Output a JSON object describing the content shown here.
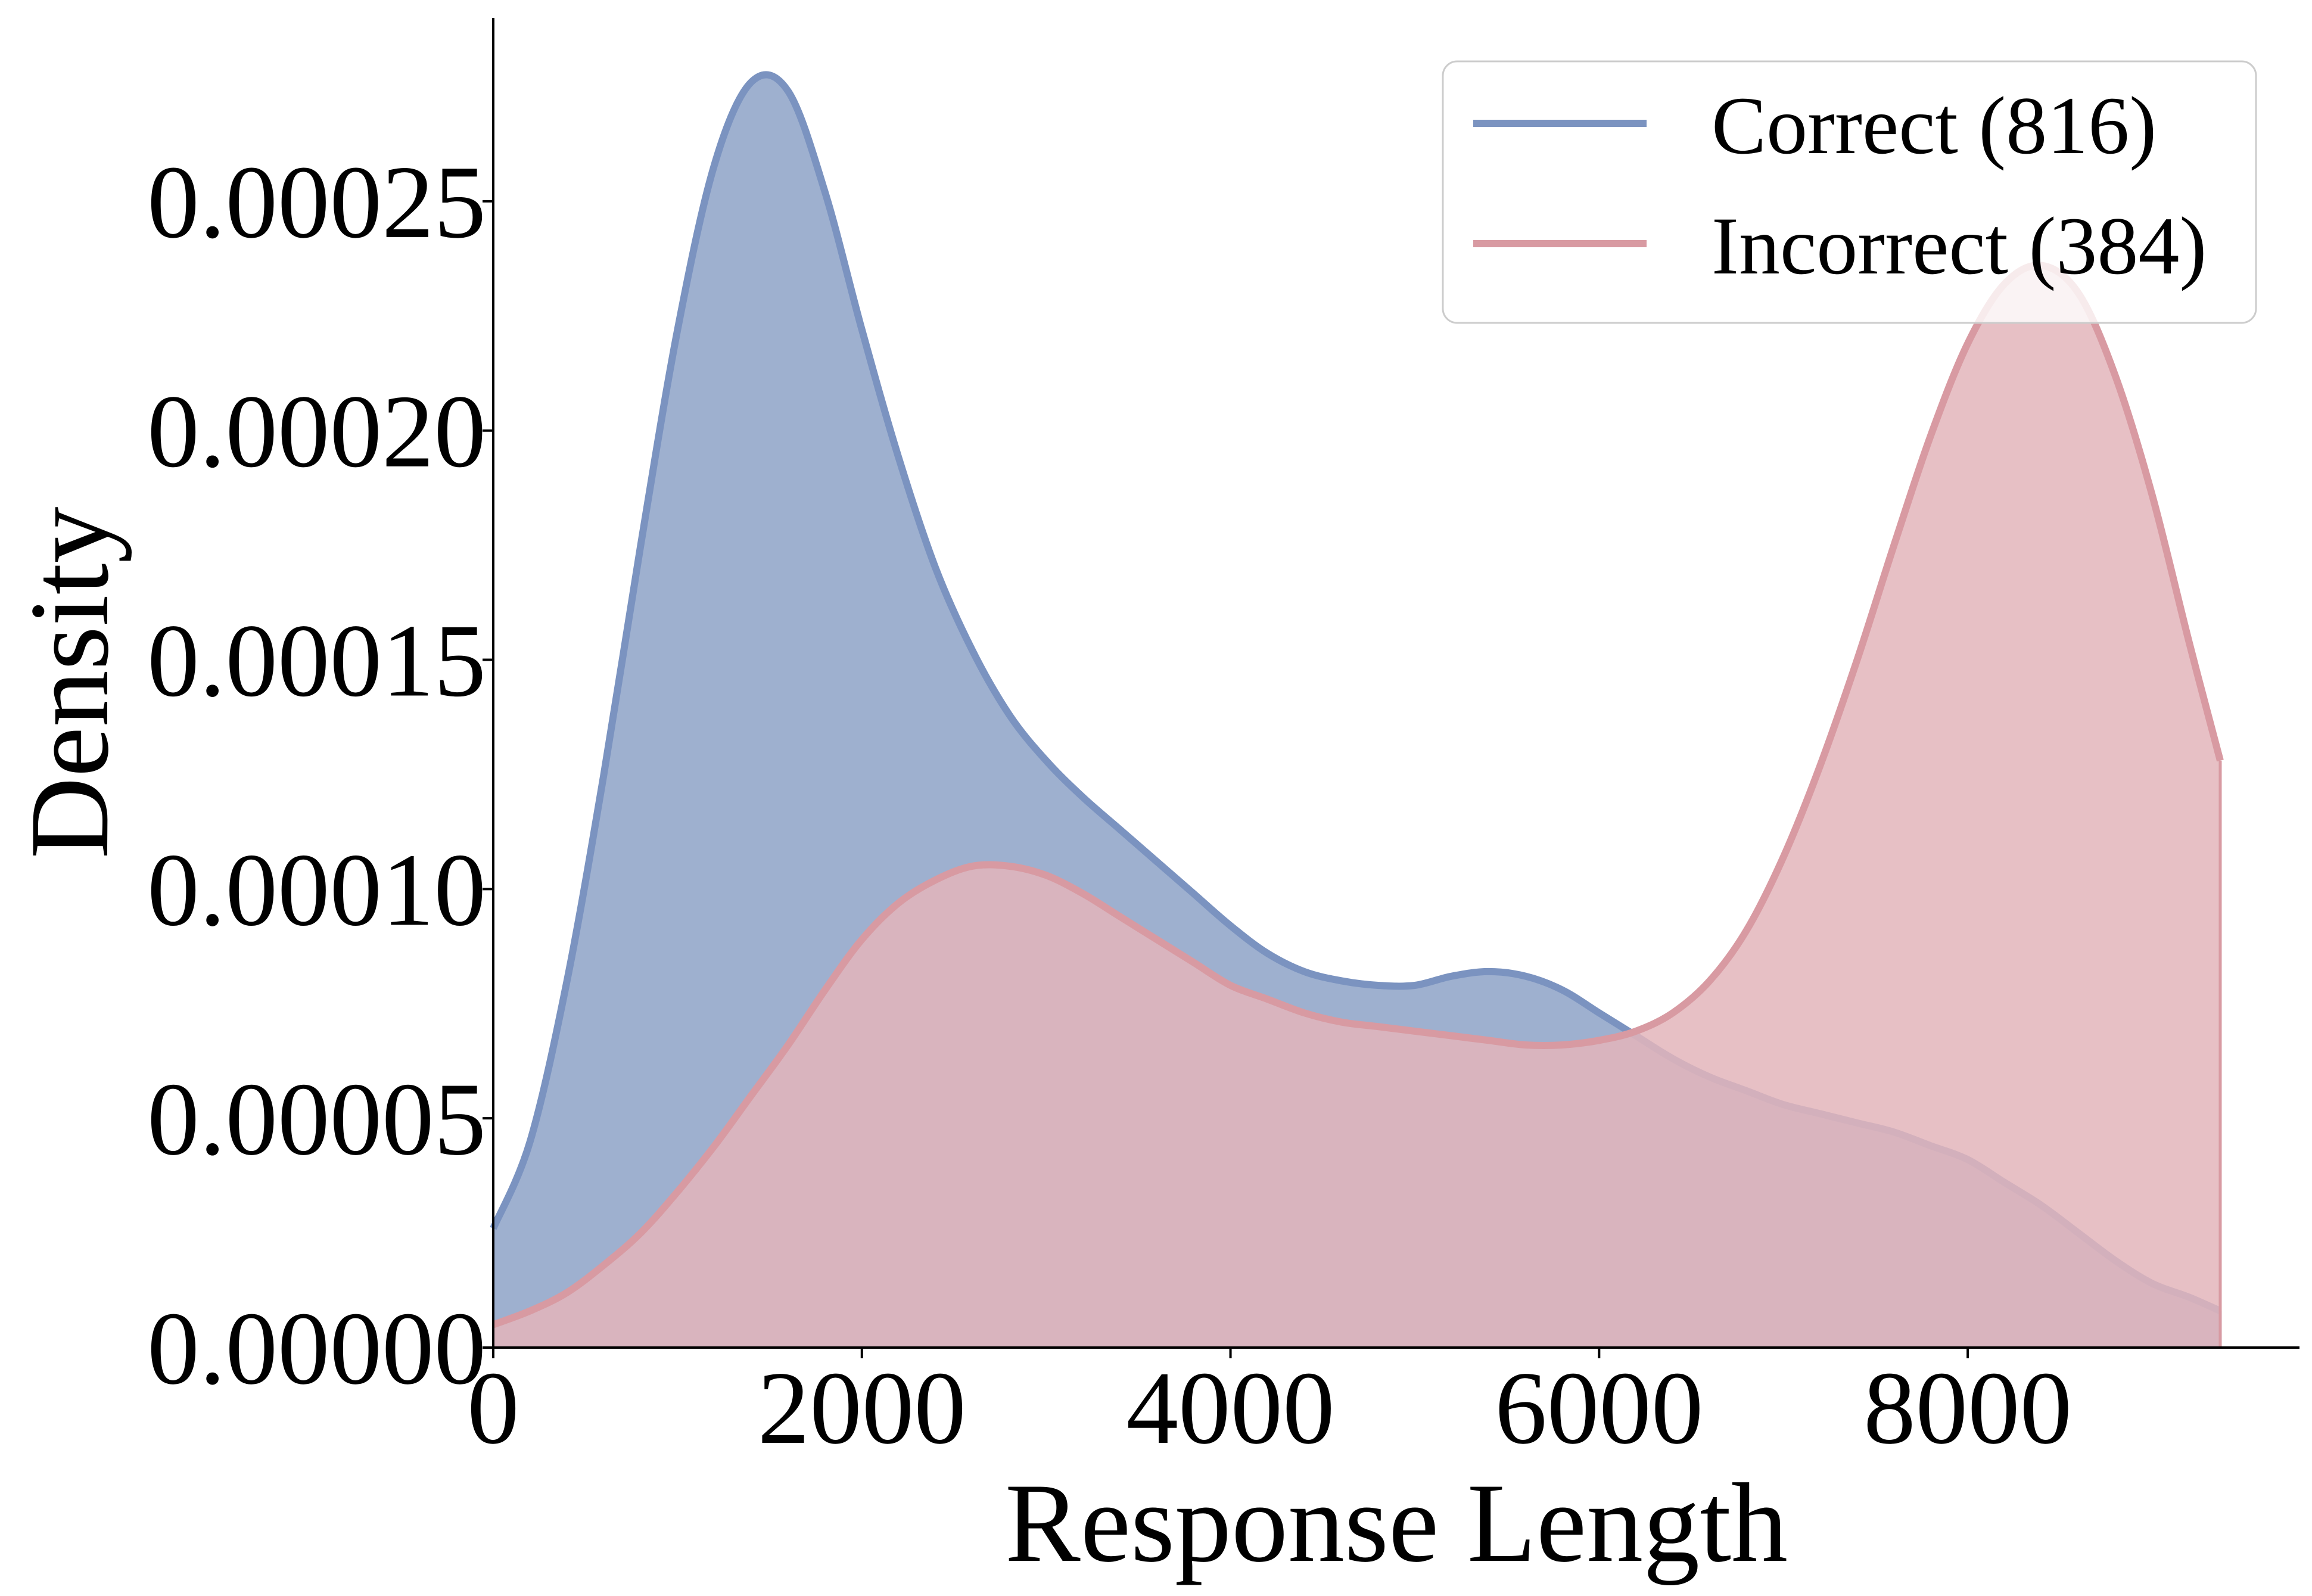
{
  "chart_data": {
    "type": "area",
    "title": "",
    "xlabel": "Response Length",
    "ylabel": "Density",
    "xlim": [
      0,
      9800
    ],
    "ylim": [
      0,
      0.00029
    ],
    "x_ticks": [
      0,
      2000,
      4000,
      6000,
      8000
    ],
    "x_tick_labels": [
      "0",
      "2000",
      "4000",
      "6000",
      "8000"
    ],
    "y_ticks": [
      0,
      5e-05,
      0.0001,
      0.00015,
      0.0002,
      0.00025
    ],
    "y_tick_labels": [
      "0.00000",
      "0.00005",
      "0.00010",
      "0.00015",
      "0.00020",
      "0.00025"
    ],
    "grid": false,
    "legend_position": "top-right",
    "series": [
      {
        "name": "Correct (816)",
        "color": "#7b93c0",
        "fill": "#9eb0cf",
        "x": [
          0,
          200,
          400,
          600,
          800,
          1000,
          1200,
          1400,
          1600,
          1800,
          2000,
          2200,
          2400,
          2600,
          2800,
          3000,
          3200,
          3400,
          3600,
          3800,
          4000,
          4200,
          4400,
          4600,
          4800,
          5000,
          5200,
          5400,
          5600,
          5800,
          6000,
          6200,
          6400,
          6600,
          6800,
          7000,
          7200,
          7400,
          7600,
          7800,
          8000,
          8200,
          8400,
          8600,
          8800,
          9000,
          9200,
          9370
        ],
        "y": [
          2.6e-05,
          4.5e-05,
          8e-05,
          0.000125,
          0.000175,
          0.000222,
          0.000258,
          0.000276,
          0.000274,
          0.000252,
          0.000222,
          0.000194,
          0.00017,
          0.000152,
          0.000138,
          0.000128,
          0.00012,
          0.000113,
          0.000106,
          9.9e-05,
          9.2e-05,
          8.6e-05,
          8.2e-05,
          8e-05,
          7.9e-05,
          7.9e-05,
          8.1e-05,
          8.2e-05,
          8.1e-05,
          7.8e-05,
          7.3e-05,
          6.8e-05,
          6.3e-05,
          5.9e-05,
          5.6e-05,
          5.3e-05,
          5.1e-05,
          4.9e-05,
          4.7e-05,
          4.4e-05,
          4.1e-05,
          3.6e-05,
          3.1e-05,
          2.5e-05,
          1.9e-05,
          1.4e-05,
          1.1e-05,
          8e-06
        ]
      },
      {
        "name": "Incorrect (384)",
        "color": "#d89aa2",
        "fill": "#e3b5bb",
        "x": [
          0,
          200,
          400,
          600,
          800,
          1000,
          1200,
          1400,
          1600,
          1800,
          2000,
          2200,
          2400,
          2600,
          2800,
          3000,
          3200,
          3400,
          3600,
          3800,
          4000,
          4200,
          4400,
          4600,
          4800,
          5000,
          5200,
          5400,
          5600,
          5800,
          6000,
          6200,
          6400,
          6600,
          6800,
          7000,
          7200,
          7400,
          7600,
          7800,
          8000,
          8200,
          8400,
          8600,
          8800,
          9000,
          9200,
          9370
        ],
        "y": [
          5e-06,
          8e-06,
          1.2e-05,
          1.8e-05,
          2.5e-05,
          3.4e-05,
          4.4e-05,
          5.5e-05,
          6.6e-05,
          7.8e-05,
          8.9e-05,
          9.7e-05,
          0.000102,
          0.000105,
          0.000105,
          0.000103,
          9.9e-05,
          9.4e-05,
          8.9e-05,
          8.4e-05,
          7.9e-05,
          7.6e-05,
          7.3e-05,
          7.1e-05,
          7e-05,
          6.9e-05,
          6.8e-05,
          6.7e-05,
          6.6e-05,
          6.6e-05,
          6.7e-05,
          6.9e-05,
          7.3e-05,
          8e-05,
          9.1e-05,
          0.000107,
          0.000127,
          0.00015,
          0.000175,
          0.000199,
          0.000219,
          0.000232,
          0.000236,
          0.00023,
          0.000212,
          0.000186,
          0.000154,
          0.000128
        ]
      }
    ]
  }
}
